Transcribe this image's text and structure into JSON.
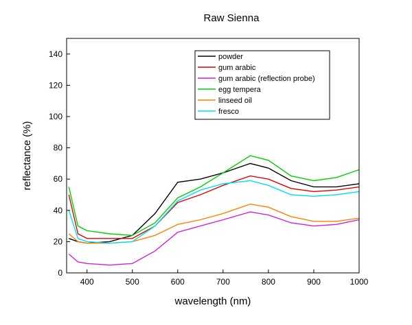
{
  "chart_data": {
    "type": "line",
    "title": "Raw Sienna",
    "xlabel": "wavelength (nm)",
    "ylabel": "reflectance (%)",
    "xlim": [
      355,
      1000
    ],
    "ylim": [
      0,
      150
    ],
    "xticks": [
      400,
      500,
      600,
      700,
      800,
      900,
      1000
    ],
    "yticks": [
      0,
      20,
      40,
      60,
      80,
      100,
      120,
      140
    ],
    "grid": false,
    "legend_position": "top-right",
    "series": [
      {
        "name": "powder",
        "color": "#000000",
        "x": [
          360,
          380,
          400,
          450,
          500,
          550,
          600,
          650,
          700,
          760,
          800,
          850,
          900,
          950,
          1000
        ],
        "y": [
          22,
          20,
          19,
          20,
          24,
          38,
          58,
          60,
          64,
          70,
          67,
          59,
          55,
          55,
          57
        ]
      },
      {
        "name": "gum arabic",
        "color": "#e00000",
        "x": [
          360,
          380,
          400,
          450,
          500,
          550,
          600,
          650,
          700,
          760,
          800,
          850,
          900,
          950,
          1000
        ],
        "y": [
          50,
          25,
          22,
          22,
          22,
          30,
          45,
          50,
          56,
          62,
          60,
          54,
          52,
          53,
          55
        ]
      },
      {
        "name": "gum arabic (reflection probe)",
        "color": "#d020d0",
        "x": [
          360,
          380,
          400,
          450,
          500,
          550,
          600,
          650,
          700,
          760,
          800,
          850,
          900,
          950,
          1000
        ],
        "y": [
          12,
          7,
          6,
          5,
          6,
          14,
          26,
          30,
          34,
          39,
          37,
          32,
          30,
          31,
          34
        ]
      },
      {
        "name": "egg tempera",
        "color": "#00d000",
        "x": [
          360,
          380,
          400,
          450,
          500,
          550,
          600,
          650,
          700,
          760,
          800,
          850,
          900,
          950,
          1000
        ],
        "y": [
          55,
          30,
          27,
          25,
          24,
          32,
          48,
          55,
          64,
          75,
          72,
          62,
          59,
          61,
          66
        ]
      },
      {
        "name": "linseed oil",
        "color": "#ff8000",
        "x": [
          360,
          380,
          400,
          450,
          500,
          550,
          600,
          650,
          700,
          760,
          800,
          850,
          900,
          950,
          1000
        ],
        "y": [
          25,
          20,
          19,
          19,
          20,
          24,
          31,
          34,
          38,
          44,
          42,
          36,
          33,
          33,
          35
        ]
      },
      {
        "name": "fresco",
        "color": "#00e0f0",
        "x": [
          360,
          380,
          400,
          450,
          500,
          550,
          600,
          650,
          700,
          760,
          800,
          850,
          900,
          950,
          1000
        ],
        "y": [
          40,
          22,
          20,
          19,
          20,
          30,
          46,
          53,
          57,
          59,
          56,
          50,
          49,
          50,
          52
        ]
      }
    ]
  }
}
